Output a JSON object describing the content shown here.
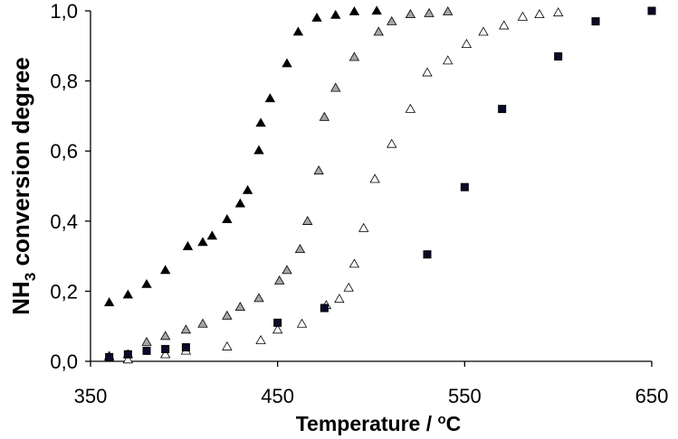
{
  "chart_data": {
    "type": "scatter",
    "title": "",
    "xlabel": "Temperature / ",
    "xlabel_unit": "C",
    "xlabel_superscript": "o",
    "ylabel_prefix": "NH",
    "ylabel_subscript": "3",
    "ylabel_suffix": " conversion degree",
    "xlim": [
      350,
      650
    ],
    "ylim": [
      0,
      1.0
    ],
    "x_ticks": [
      350,
      450,
      550,
      650
    ],
    "x_tick_labels": [
      "350",
      "450",
      "550",
      "650"
    ],
    "y_ticks": [
      0,
      0.2,
      0.4,
      0.6,
      0.8,
      1.0
    ],
    "y_tick_labels": [
      "0,0",
      "0,2",
      "0,4",
      "0,6",
      "0,8",
      "1,0"
    ],
    "grid": false,
    "legend": "none",
    "series": [
      {
        "marker": "triangle",
        "color": "#000000",
        "stroke": "#000000",
        "x": [
          360,
          370,
          380,
          390,
          402,
          410,
          415,
          423,
          430,
          434,
          440,
          441,
          446,
          455,
          461,
          471,
          481,
          491,
          503
        ],
        "y": [
          0.168,
          0.19,
          0.22,
          0.26,
          0.328,
          0.34,
          0.358,
          0.405,
          0.45,
          0.488,
          0.602,
          0.68,
          0.75,
          0.85,
          0.94,
          0.98,
          0.988,
          0.998,
          1.0
        ]
      },
      {
        "marker": "triangle",
        "color": "#a6a6a6",
        "stroke": "#000000",
        "x": [
          360,
          370,
          380,
          390,
          401,
          410,
          423,
          430,
          440,
          451,
          455,
          462,
          466,
          472,
          475,
          481,
          491,
          504,
          511,
          521,
          531,
          541
        ],
        "y": [
          0.015,
          0.02,
          0.055,
          0.072,
          0.09,
          0.107,
          0.13,
          0.155,
          0.18,
          0.23,
          0.26,
          0.32,
          0.4,
          0.544,
          0.697,
          0.78,
          0.868,
          0.94,
          0.97,
          0.99,
          0.993,
          0.998
        ]
      },
      {
        "marker": "triangle",
        "color": "#ffffff",
        "stroke": "#000000",
        "x": [
          360,
          370,
          390,
          401,
          423,
          441,
          450,
          463,
          476,
          483,
          488,
          491,
          496,
          502,
          511,
          521,
          530,
          541,
          551,
          560,
          571,
          581,
          590,
          600
        ],
        "y": [
          0.01,
          0.005,
          0.02,
          0.03,
          0.042,
          0.06,
          0.09,
          0.107,
          0.16,
          0.178,
          0.21,
          0.278,
          0.38,
          0.52,
          0.62,
          0.72,
          0.824,
          0.858,
          0.905,
          0.94,
          0.958,
          0.983,
          0.99,
          0.995
        ]
      },
      {
        "marker": "square",
        "color": "#0a0a2a",
        "stroke": "#000000",
        "x": [
          360,
          370,
          380,
          390,
          401,
          450,
          475,
          530,
          550,
          570,
          600,
          620,
          650
        ],
        "y": [
          0.012,
          0.02,
          0.03,
          0.035,
          0.04,
          0.11,
          0.152,
          0.305,
          0.497,
          0.72,
          0.87,
          0.97,
          1.0
        ]
      }
    ]
  }
}
